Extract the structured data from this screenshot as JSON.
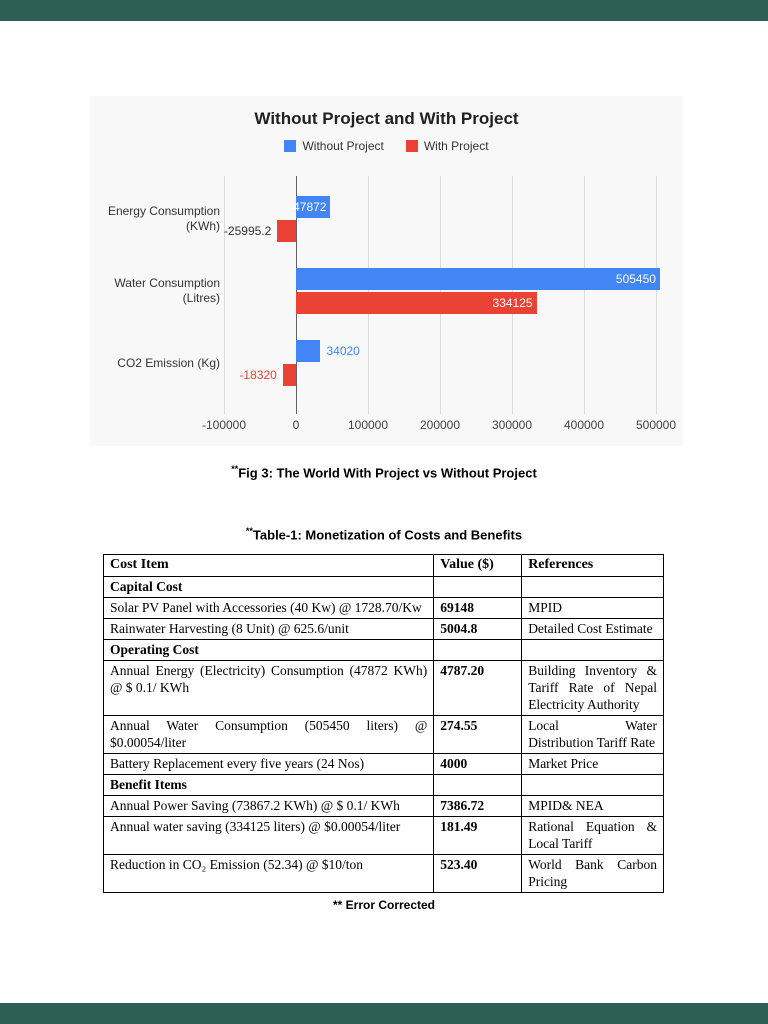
{
  "page": {
    "viewer_bar_color": "#2d5f54"
  },
  "chart": {
    "background": "#f8f8f8",
    "categories": [
      {
        "lines": [
          "Energy Consumption",
          "(KWh)"
        ]
      },
      {
        "lines": [
          "Water Consumption",
          "(Litres)"
        ]
      },
      {
        "lines": [
          "CO2 Emission (Kg)"
        ]
      }
    ],
    "bar_labels": [
      [
        {
          "text": "47872",
          "placement": "inside"
        },
        {
          "text": "505450",
          "placement": "inside"
        },
        {
          "text": "34020",
          "placement": "outside",
          "color": "#4285f4"
        }
      ],
      [
        {
          "text": "-25995.2",
          "placement": "outside",
          "color": "#333333"
        },
        {
          "text": "334125",
          "placement": "inside"
        },
        {
          "text": "-18320",
          "placement": "outside",
          "color": "#ea4335"
        }
      ]
    ]
  },
  "chart_data": {
    "type": "bar",
    "orientation": "horizontal",
    "title": "Without Project and With Project",
    "categories": [
      "Energy Consumption (KWh)",
      "Water Consumption (Litres)",
      "CO2 Emission (Kg)"
    ],
    "series": [
      {
        "name": "Without Project",
        "color": "#4285f4",
        "values": [
          47872,
          505450,
          34020
        ]
      },
      {
        "name": "With Project",
        "color": "#ea4335",
        "values": [
          -25995.2,
          334125,
          -18320
        ]
      }
    ],
    "x_ticks": [
      -100000,
      0,
      100000,
      200000,
      300000,
      400000,
      500000
    ],
    "xlim": [
      -110000,
      515000
    ],
    "grid": true,
    "legend_position": "top",
    "xlabel": "",
    "ylabel": ""
  },
  "fig_caption": {
    "marker": "**",
    "text": "Fig 3: The World With Project vs Without Project"
  },
  "table_caption": {
    "marker": "**",
    "text": "Table-1: Monetization of Costs and Benefits"
  },
  "table": {
    "headers": [
      "Cost Item",
      "Value ($)",
      "References"
    ],
    "rows": [
      {
        "type": "section",
        "item": "Capital Cost",
        "value": "",
        "ref": ""
      },
      {
        "type": "data",
        "item": "Solar PV Panel with Accessories (40 Kw) @ 1728.70/Kw",
        "value": "69148",
        "ref": "MPID"
      },
      {
        "type": "data",
        "item": "Rainwater Harvesting (8 Unit) @ 625.6/unit",
        "value": "5004.8",
        "ref": "Detailed Cost Estimate"
      },
      {
        "type": "section",
        "item": "Operating Cost",
        "value": "",
        "ref": ""
      },
      {
        "type": "data",
        "item": "Annual Energy (Electricity) Consumption (47872 KWh) @ $ 0.1/ KWh",
        "value": "4787.20",
        "ref": "Building Inventory & Tariff Rate of Nepal Electricity Authority"
      },
      {
        "type": "data",
        "item": "Annual Water Consumption (505450 liters) @ $0.00054/liter",
        "value": "274.55",
        "ref": "Local Water Distribution Tariff Rate"
      },
      {
        "type": "data",
        "item": "Battery Replacement every five years (24 Nos)",
        "value": "4000",
        "ref": "Market Price"
      },
      {
        "type": "section",
        "item": "Benefit Items",
        "value": "",
        "ref": ""
      },
      {
        "type": "data",
        "item": "Annual Power Saving (73867.2 KWh) @ $ 0.1/ KWh",
        "value": "7386.72",
        "ref": "MPID& NEA"
      },
      {
        "type": "data",
        "item": "Annual water saving (334125 liters) @ $0.00054/liter",
        "value": "181.49",
        "ref": "Rational Equation & Local Tariff"
      },
      {
        "type": "data",
        "item": "Reduction in CO₂ Emission (52.34) @ $10/ton",
        "value": "523.40",
        "ref": "World Bank Carbon Pricing"
      }
    ]
  },
  "footnote": "** Error Corrected"
}
